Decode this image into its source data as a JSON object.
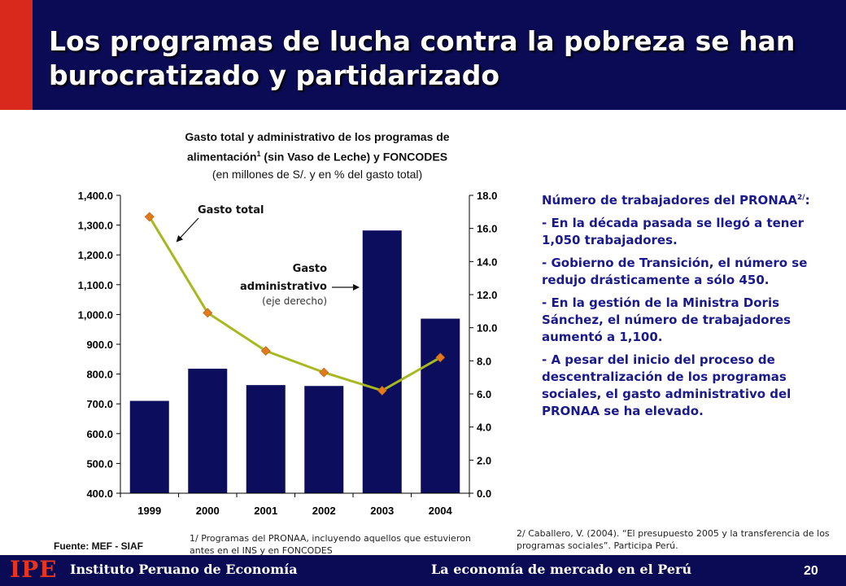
{
  "header": {
    "title_line1": "Los programas de lucha contra la pobreza se han",
    "title_line2": "burocratizado y partidarizado"
  },
  "chart_title": {
    "line1": "Gasto total y administrativo de los programas de",
    "line2_a": "alimentación",
    "line2_sup": "1",
    "line2_b": " (sin Vaso de Leche) y FONCODES",
    "line3": "(en millones de S/. y en % del gasto total)"
  },
  "colors": {
    "header_band": "#0b0b55",
    "accent_red": "#d8291c",
    "bar": "#0d0d5e",
    "line": "#a8b820",
    "marker": "#e07a1a",
    "side_text": "#1a1a8c"
  },
  "chart_data": {
    "type": "bar",
    "categories": [
      "1999",
      "2000",
      "2001",
      "2002",
      "2003",
      "2004"
    ],
    "series": [
      {
        "name": "Gasto total",
        "type": "bar",
        "axis": "left",
        "values": [
          710,
          818,
          763,
          760,
          1282,
          986
        ]
      },
      {
        "name": "Gasto administrativo",
        "type": "line",
        "axis": "right",
        "values": [
          16.7,
          10.9,
          8.6,
          7.3,
          6.2,
          8.2
        ]
      }
    ],
    "y_left": {
      "min": 400,
      "max": 1400,
      "step": 100,
      "ticks": [
        "400.0",
        "500.0",
        "600.0",
        "700.0",
        "800.0",
        "900.0",
        "1,000.0",
        "1,100.0",
        "1,200.0",
        "1,300.0",
        "1,400.0"
      ]
    },
    "y_right": {
      "min": 0,
      "max": 18,
      "step": 2,
      "ticks": [
        "0.0",
        "2.0",
        "4.0",
        "6.0",
        "8.0",
        "10.0",
        "12.0",
        "14.0",
        "16.0",
        "18.0"
      ]
    },
    "annotations": {
      "total": "Gasto total",
      "admin_1": "Gasto",
      "admin_2": "administrativo",
      "admin_3": "(eje derecho)"
    },
    "grid": false,
    "legend": "none"
  },
  "side": {
    "heading": "Número de trabajadores del PRONAA",
    "heading_sup": "2/",
    "heading_end": ":",
    "bullets": [
      "- En la década pasada se llegó a tener 1,050 trabajadores.",
      "- Gobierno de Transición, el número se redujo drásticamente a sólo 450.",
      "- En la gestión de la Ministra Doris Sánchez, el número de trabajadores aumentó a 1,100.",
      "- A pesar del inicio del proceso de descentralización de los programas sociales, el gasto administrativo del PRONAA se ha elevado."
    ]
  },
  "notes": {
    "fuente": "Fuente: MEF - SIAF",
    "note1": "1/ Programas del PRONAA, incluyendo aquellos que estuvieron antes en el INS y en FONCODES",
    "note2": "2/ Caballero, V. (2004). “El presupuesto 2005 y la transferencia de los programas sociales”. Participa Perú."
  },
  "footer": {
    "logo": "IPE",
    "institute": "Instituto Peruano de Economía",
    "slogan": "La economía de mercado en el Perú",
    "page": "20"
  }
}
